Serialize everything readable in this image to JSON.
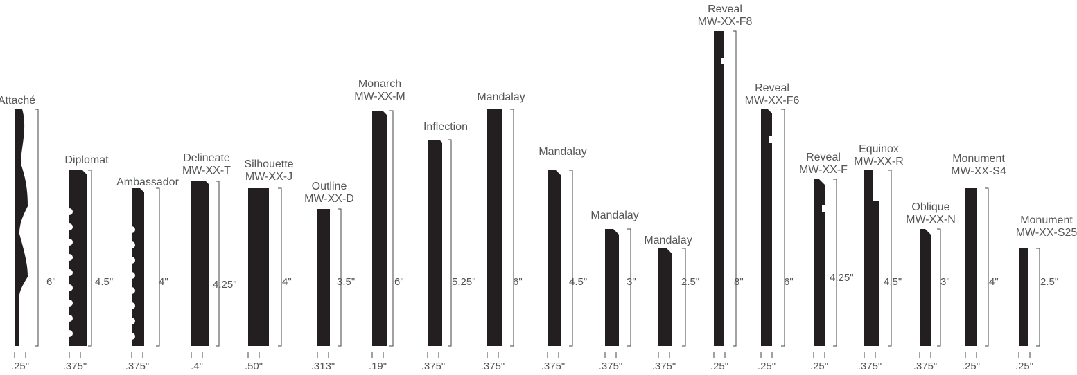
{
  "mouldings": [
    {
      "name": "Attaché",
      "model": "",
      "height": "6\"",
      "thickness": ".25\""
    },
    {
      "name": "Diplomat",
      "model": "",
      "height": "4.5\"",
      "thickness": ".375\""
    },
    {
      "name": "Ambassador",
      "model": "",
      "height": "4\"",
      "thickness": ".375\""
    },
    {
      "name": "Delineate",
      "model": "MW-XX-T",
      "height": "4.25\"",
      "thickness": ".4\""
    },
    {
      "name": "Silhouette",
      "model": "MW-XX-J",
      "height": "4\"",
      "thickness": ".50\""
    },
    {
      "name": "Outline",
      "model": "MW-XX-D",
      "height": "3.5\"",
      "thickness": ".313\""
    },
    {
      "name": "Monarch",
      "model": "MW-XX-M",
      "height": "6\"",
      "thickness": ".19\""
    },
    {
      "name": "Inflection",
      "model": "",
      "height": "5.25\"",
      "thickness": ".375\""
    },
    {
      "name": "Mandalay",
      "model": "",
      "height": "6\"",
      "thickness": ".375\""
    },
    {
      "name": "Mandalay",
      "model": "",
      "height": "4.5\"",
      "thickness": ".375\""
    },
    {
      "name": "Mandalay",
      "model": "",
      "height": "3\"",
      "thickness": ".375\""
    },
    {
      "name": "Mandalay",
      "model": "",
      "height": "2.5\"",
      "thickness": ".375\""
    },
    {
      "name": "Reveal",
      "model": "MW-XX-F8",
      "height": "8\"",
      "thickness": ".25\""
    },
    {
      "name": "Reveal",
      "model": "MW-XX-F6",
      "height": "6\"",
      "thickness": ".25\""
    },
    {
      "name": "Reveal",
      "model": "MW-XX-F",
      "height": "4.25\"",
      "thickness": ".25\""
    },
    {
      "name": "Equinox",
      "model": "MW-XX-R",
      "height": "4.5\"",
      "thickness": ".375\""
    },
    {
      "name": "Oblique",
      "model": "MW-XX-N",
      "height": "3\"",
      "thickness": ".375\""
    },
    {
      "name": "Monument",
      "model": "MW-XX-S4",
      "height": "4\"",
      "thickness": ".25\""
    },
    {
      "name": "Monument",
      "model": "MW-XX-S25",
      "height": "2.5\"",
      "thickness": ".25\""
    }
  ]
}
